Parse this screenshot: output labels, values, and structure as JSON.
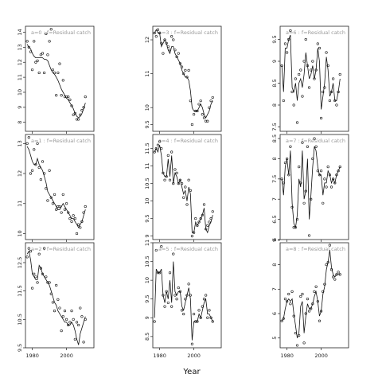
{
  "chart_data": {
    "type": "scatter",
    "xlabel": "Year",
    "xticks": [
      1980,
      2000
    ],
    "x_range": [
      1976,
      2016
    ],
    "panels": [
      {
        "label": "a=0  :  f=Residual catch",
        "ylim": [
          7.4,
          14.4
        ],
        "yticks": [
          8,
          9,
          10,
          11,
          12,
          13,
          14
        ],
        "x": [
          1977,
          1978,
          1979,
          1980,
          1981,
          1982,
          1983,
          1984,
          1985,
          1986,
          1987,
          1988,
          1989,
          1990,
          1991,
          1992,
          1993,
          1994,
          1995,
          1996,
          1997,
          1998,
          1999,
          2000,
          2001,
          2002,
          2003,
          2004,
          2005,
          2006,
          2007,
          2008,
          2009,
          2010,
          2011
        ],
        "y": [
          13.4,
          13.0,
          12.7,
          11.5,
          13.4,
          12.0,
          12.1,
          11.3,
          12.5,
          12.6,
          11.3,
          13.9,
          12.5,
          13.4,
          14.2,
          11.5,
          11.3,
          9.8,
          11.3,
          11.9,
          9.8,
          10.8,
          9.7,
          9.7,
          9.7,
          9.5,
          9.1,
          8.5,
          8.6,
          8.2,
          8.2,
          8.5,
          8.8,
          9.0,
          9.7
        ],
        "line": [
          13.2,
          13.0,
          12.9,
          12.6,
          12.4,
          12.3,
          12.3,
          12.3,
          12.3,
          12.3,
          12.2,
          12.2,
          12.1,
          11.8,
          11.5,
          11.3,
          11.2,
          11.0,
          10.8,
          10.5,
          10.2,
          10.0,
          9.8,
          9.6,
          9.5,
          9.3,
          9.1,
          8.9,
          8.6,
          8.4,
          8.3,
          8.4,
          8.6,
          8.9,
          9.3
        ]
      },
      {
        "label": "a=1  :  f=Residual catch",
        "ylim": [
          9.8,
          13.3
        ],
        "yticks": [
          10.0,
          11.0,
          12.0,
          13.0
        ],
        "x": [
          1977,
          1978,
          1979,
          1980,
          1981,
          1982,
          1983,
          1984,
          1985,
          1986,
          1987,
          1988,
          1989,
          1990,
          1991,
          1992,
          1993,
          1994,
          1995,
          1996,
          1997,
          1998,
          1999,
          2000,
          2001,
          2002,
          2003,
          2004,
          2005,
          2006,
          2007,
          2008,
          2009,
          2010,
          2011
        ],
        "y": [
          13.0,
          13.2,
          12.0,
          12.1,
          12.8,
          12.3,
          13.0,
          12.2,
          11.8,
          12.4,
          12.0,
          11.5,
          11.1,
          12.1,
          11.2,
          11.0,
          11.3,
          10.8,
          10.9,
          10.9,
          10.7,
          11.3,
          10.8,
          11.0,
          10.7,
          10.5,
          10.4,
          10.6,
          10.5,
          10.0,
          10.3,
          10.2,
          10.4,
          10.7,
          10.9
        ],
        "line": [
          12.9,
          12.8,
          12.6,
          12.4,
          12.3,
          12.3,
          12.5,
          12.3,
          12.2,
          12.1,
          11.9,
          11.7,
          11.4,
          11.3,
          11.2,
          11.1,
          11.0,
          10.9,
          10.8,
          10.8,
          10.9,
          11.0,
          10.9,
          10.8,
          10.7,
          10.6,
          10.5,
          10.5,
          10.4,
          10.3,
          10.2,
          10.3,
          10.4,
          10.6,
          10.8
        ]
      },
      {
        "label": "a=2  :  f=Residual catch",
        "ylim": [
          9.5,
          13.2
        ],
        "yticks": [
          9.5,
          10.5,
          11.5,
          12.5
        ],
        "x": [
          1977,
          1978,
          1979,
          1980,
          1981,
          1982,
          1983,
          1984,
          1985,
          1986,
          1987,
          1988,
          1989,
          1990,
          1991,
          1992,
          1993,
          1994,
          1995,
          1996,
          1997,
          1998,
          1999,
          2000,
          2001,
          2002,
          2003,
          2004,
          2005,
          2006,
          2007,
          2008,
          2009,
          2010,
          2011
        ],
        "y": [
          12.7,
          13.0,
          12.9,
          11.6,
          12.1,
          12.0,
          11.8,
          12.8,
          12.3,
          12.1,
          13.0,
          12.0,
          11.8,
          11.8,
          11.4,
          11.1,
          10.8,
          11.7,
          11.2,
          10.9,
          10.1,
          10.6,
          10.8,
          10.5,
          10.3,
          10.4,
          10.8,
          10.5,
          9.8,
          10.4,
          10.3,
          10.9,
          10.6,
          9.7,
          10.5
        ],
        "line": [
          12.8,
          12.9,
          12.6,
          12.1,
          12.0,
          11.9,
          11.9,
          12.4,
          12.3,
          12.1,
          12.0,
          11.9,
          11.8,
          11.7,
          11.5,
          11.3,
          11.1,
          11.0,
          10.8,
          10.7,
          10.6,
          10.5,
          10.4,
          10.4,
          10.3,
          10.3,
          10.4,
          10.3,
          10.1,
          9.8,
          9.6,
          10.0,
          10.2,
          10.4,
          10.6
        ]
      },
      {
        "label": "a=3  :  f=Residual catch",
        "ylim": [
          9.3,
          12.4
        ],
        "yticks": [
          9.5,
          10.0,
          11.0,
          12.0
        ],
        "x": [
          1977,
          1978,
          1979,
          1980,
          1981,
          1982,
          1983,
          1984,
          1985,
          1986,
          1987,
          1988,
          1989,
          1990,
          1991,
          1992,
          1993,
          1994,
          1995,
          1996,
          1997,
          1998,
          1999,
          2000,
          2001,
          2002,
          2003,
          2004,
          2005,
          2006,
          2007,
          2008,
          2009,
          2010,
          2011
        ],
        "y": [
          12.2,
          12.1,
          12.3,
          12.2,
          11.9,
          11.6,
          12.0,
          11.9,
          11.8,
          11.7,
          12.1,
          12.0,
          11.7,
          11.5,
          11.6,
          11.3,
          11.2,
          11.0,
          11.1,
          10.9,
          11.1,
          10.2,
          9.5,
          9.8,
          9.9,
          9.9,
          10.1,
          10.2,
          9.8,
          9.7,
          9.6,
          9.6,
          10.0,
          10.2,
          10.3
        ],
        "line": [
          12.2,
          12.3,
          12.2,
          12.2,
          11.8,
          11.9,
          12.0,
          11.9,
          11.7,
          11.6,
          11.8,
          11.8,
          11.6,
          11.5,
          11.4,
          11.3,
          11.1,
          11.0,
          10.9,
          10.9,
          10.8,
          10.5,
          10.0,
          9.9,
          9.9,
          9.9,
          10.0,
          10.1,
          10.0,
          9.8,
          9.7,
          9.8,
          9.9,
          10.1,
          10.2
        ]
      },
      {
        "label": "a=4  :  f=Residual catch",
        "ylim": [
          8.9,
          11.9
        ],
        "yticks": [
          9.0,
          9.5,
          10.0,
          10.5,
          11.0,
          11.5
        ],
        "x": [
          1977,
          1978,
          1979,
          1980,
          1981,
          1982,
          1983,
          1984,
          1985,
          1986,
          1987,
          1988,
          1989,
          1990,
          1991,
          1992,
          1993,
          1994,
          1995,
          1996,
          1997,
          1998,
          1999,
          2000,
          2001,
          2002,
          2003,
          2004,
          2005,
          2006,
          2007,
          2008,
          2009,
          2010,
          2011
        ],
        "y": [
          11.4,
          11.5,
          11.6,
          11.7,
          11.5,
          10.8,
          10.6,
          10.7,
          11.3,
          10.6,
          11.4,
          10.5,
          10.9,
          10.8,
          10.5,
          10.6,
          10.5,
          10.1,
          10.4,
          9.9,
          10.6,
          10.3,
          9.0,
          9.1,
          9.5,
          9.3,
          9.4,
          9.5,
          9.6,
          9.9,
          9.2,
          9.3,
          9.4,
          9.5,
          9.7
        ],
        "line": [
          11.4,
          11.5,
          11.4,
          11.6,
          11.3,
          10.8,
          10.7,
          10.7,
          11.2,
          10.7,
          11.3,
          10.5,
          10.8,
          10.7,
          10.5,
          10.6,
          10.4,
          10.2,
          10.3,
          10.0,
          10.4,
          10.2,
          9.1,
          9.1,
          9.4,
          9.3,
          9.4,
          9.5,
          9.6,
          9.8,
          9.2,
          9.1,
          9.3,
          9.4,
          9.6
        ]
      },
      {
        "label": "a=5  :  f=Residual catch",
        "ylim": [
          8.2,
          11.0
        ],
        "yticks": [
          8.5,
          9.0,
          9.5,
          10.0,
          10.5,
          11.0
        ],
        "x": [
          1977,
          1978,
          1979,
          1980,
          1981,
          1982,
          1983,
          1984,
          1985,
          1986,
          1987,
          1988,
          1989,
          1990,
          1991,
          1992,
          1993,
          1994,
          1995,
          1996,
          1997,
          1998,
          1999,
          2000,
          2001,
          2002,
          2003,
          2004,
          2005,
          2006,
          2007,
          2008,
          2009,
          2010,
          2011
        ],
        "y": [
          8.9,
          10.8,
          10.2,
          10.2,
          10.9,
          9.6,
          9.3,
          9.7,
          9.4,
          10.2,
          9.3,
          10.7,
          9.6,
          9.5,
          9.8,
          9.7,
          9.2,
          9.1,
          9.5,
          9.6,
          9.9,
          9.6,
          8.3,
          9.1,
          8.9,
          8.9,
          9.2,
          9.0,
          9.3,
          9.5,
          9.6,
          9.0,
          9.2,
          9.0,
          8.9
        ],
        "line": [
          9.0,
          10.3,
          10.2,
          10.2,
          10.3,
          9.6,
          9.4,
          9.7,
          9.5,
          10.0,
          9.4,
          10.5,
          9.7,
          9.6,
          9.7,
          9.7,
          9.3,
          9.2,
          9.4,
          9.6,
          9.8,
          9.5,
          8.4,
          8.9,
          8.9,
          8.9,
          9.1,
          9.0,
          9.2,
          9.4,
          9.5,
          9.1,
          9.1,
          9.0,
          8.9
        ]
      },
      {
        "label": "a=6  :  f=Residual catch",
        "ylim": [
          7.4,
          9.8
        ],
        "yticks": [
          7.5,
          8.0,
          8.5,
          9.0,
          9.5
        ],
        "x": [
          1977,
          1978,
          1979,
          1980,
          1981,
          1982,
          1983,
          1984,
          1985,
          1986,
          1987,
          1988,
          1989,
          1990,
          1991,
          1992,
          1993,
          1994,
          1995,
          1996,
          1997,
          1998,
          1999,
          2000,
          2001,
          2002,
          2003,
          2004,
          2005,
          2006,
          2007,
          2008,
          2009,
          2010,
          2011
        ],
        "y": [
          8.9,
          8.1,
          9.4,
          9.2,
          9.5,
          9.7,
          8.3,
          8.0,
          8.6,
          7.6,
          8.7,
          8.8,
          8.2,
          9.0,
          9.5,
          8.9,
          8.4,
          8.8,
          9.0,
          8.6,
          8.8,
          9.4,
          9.3,
          7.7,
          8.3,
          8.4,
          9.2,
          8.9,
          8.1,
          8.3,
          8.6,
          8.1,
          8.0,
          8.3,
          8.7
        ],
        "line": [
          8.9,
          8.3,
          9.3,
          9.3,
          9.5,
          9.6,
          8.4,
          8.3,
          8.5,
          8.1,
          8.5,
          8.6,
          8.4,
          8.7,
          9.2,
          8.9,
          8.6,
          8.7,
          8.9,
          8.6,
          8.8,
          9.3,
          9.0,
          7.9,
          8.2,
          8.5,
          9.1,
          8.8,
          8.2,
          8.3,
          8.5,
          8.1,
          8.1,
          8.3,
          8.6
        ]
      },
      {
        "label": "a=7  :  f=Residual catch",
        "ylim": [
          6.0,
          8.6
        ],
        "yticks": [
          6.0,
          6.5,
          7.0,
          7.5,
          8.0,
          8.5
        ],
        "x": [
          1977,
          1978,
          1979,
          1980,
          1981,
          1982,
          1983,
          1984,
          1985,
          1986,
          1987,
          1988,
          1989,
          1990,
          1991,
          1992,
          1993,
          1994,
          1995,
          1996,
          1997,
          1998,
          1999,
          2000,
          2001,
          2002,
          2003,
          2004,
          2005,
          2006,
          2007,
          2008,
          2009,
          2010,
          2011
        ],
        "y": [
          7.5,
          7.4,
          7.9,
          8.0,
          7.6,
          8.3,
          6.8,
          6.3,
          6.3,
          6.5,
          7.8,
          7.4,
          8.4,
          6.9,
          7.2,
          8.3,
          6.1,
          7.0,
          8.0,
          8.5,
          8.3,
          7.7,
          7.6,
          7.7,
          6.9,
          7.5,
          7.3,
          7.8,
          7.6,
          7.3,
          7.5,
          7.4,
          7.6,
          7.7,
          7.8
        ],
        "line": [
          7.5,
          7.1,
          7.8,
          8.0,
          7.6,
          8.2,
          6.9,
          6.4,
          6.3,
          6.6,
          7.5,
          7.3,
          8.2,
          7.0,
          7.2,
          8.0,
          6.5,
          7.1,
          7.8,
          8.3,
          8.2,
          7.8,
          7.6,
          7.6,
          7.1,
          7.4,
          7.4,
          7.7,
          7.6,
          7.4,
          7.5,
          7.4,
          7.6,
          7.7,
          7.8
        ]
      },
      {
        "label": "a=8  :  f=Residual catch",
        "ylim": [
          4.6,
          8.9
        ],
        "yticks": [
          5,
          6,
          7,
          8,
          9
        ],
        "x": [
          1977,
          1978,
          1979,
          1980,
          1981,
          1982,
          1983,
          1984,
          1985,
          1986,
          1987,
          1988,
          1989,
          1990,
          1991,
          1992,
          1993,
          1994,
          1995,
          1996,
          1997,
          1998,
          1999,
          2000,
          2001,
          2002,
          2003,
          2004,
          2005,
          2006,
          2007,
          2008,
          2009,
          2010,
          2011
        ],
        "y": [
          5.7,
          5.8,
          6.6,
          6.5,
          6.8,
          6.4,
          6.9,
          5.9,
          5.2,
          4.7,
          5.1,
          6.7,
          6.8,
          4.8,
          6.0,
          6.6,
          6.1,
          6.2,
          6.4,
          6.9,
          7.1,
          6.5,
          5.7,
          6.1,
          6.9,
          7.2,
          8.0,
          8.1,
          8.8,
          7.8,
          7.5,
          7.4,
          7.6,
          7.7,
          7.6
        ],
        "line": [
          5.7,
          5.8,
          6.2,
          6.5,
          6.6,
          6.5,
          6.6,
          6.0,
          5.5,
          5.0,
          5.2,
          6.3,
          6.5,
          5.2,
          5.9,
          6.4,
          6.2,
          6.2,
          6.4,
          6.7,
          6.9,
          6.5,
          5.9,
          6.1,
          6.8,
          7.1,
          7.8,
          8.1,
          8.6,
          7.9,
          7.6,
          7.5,
          7.6,
          7.6,
          7.6
        ]
      }
    ]
  }
}
